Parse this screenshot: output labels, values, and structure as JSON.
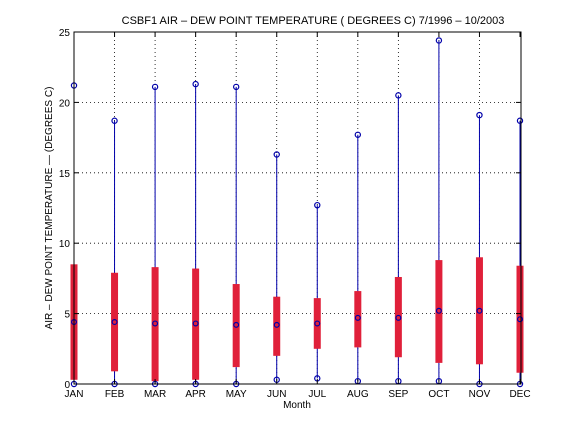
{
  "chart_data": {
    "type": "boxplot",
    "title": "CSBF1  AIR – DEW POINT TEMPERATURE ( DEGREES C) 7/1996 – 10/2003",
    "xlabel": "Month",
    "ylabel": "AIR – DEW POINT TEMPERATURE  —  (DEGREES C)",
    "categories": [
      "JAN",
      "FEB",
      "MAR",
      "APR",
      "MAY",
      "JUN",
      "JUL",
      "AUG",
      "SEP",
      "OCT",
      "NOV",
      "DEC"
    ],
    "max": [
      21.2,
      18.7,
      21.1,
      21.3,
      21.1,
      16.3,
      12.7,
      17.7,
      20.5,
      24.4,
      19.1,
      18.7
    ],
    "q3": [
      8.5,
      7.9,
      8.3,
      8.2,
      7.1,
      6.2,
      6.1,
      6.6,
      7.6,
      8.8,
      9.0,
      8.4
    ],
    "median": [
      4.4,
      4.4,
      4.3,
      4.3,
      4.2,
      4.2,
      4.3,
      4.7,
      4.7,
      5.2,
      5.2,
      4.6
    ],
    "q1": [
      0.3,
      0.9,
      0.2,
      0.3,
      1.2,
      2.0,
      2.5,
      2.6,
      1.9,
      1.5,
      1.4,
      0.8
    ],
    "min": [
      0.0,
      0.0,
      0.0,
      0.0,
      0.0,
      0.3,
      0.4,
      0.2,
      0.2,
      0.2,
      0.0,
      0.0
    ],
    "ylim": [
      0,
      25
    ],
    "yticks": [
      "0",
      "5",
      "10",
      "15",
      "20",
      "25"
    ],
    "grid": true,
    "colors": {
      "whisker": "#0000aa",
      "box": "#e0203a",
      "marker": "#0000aa"
    }
  }
}
